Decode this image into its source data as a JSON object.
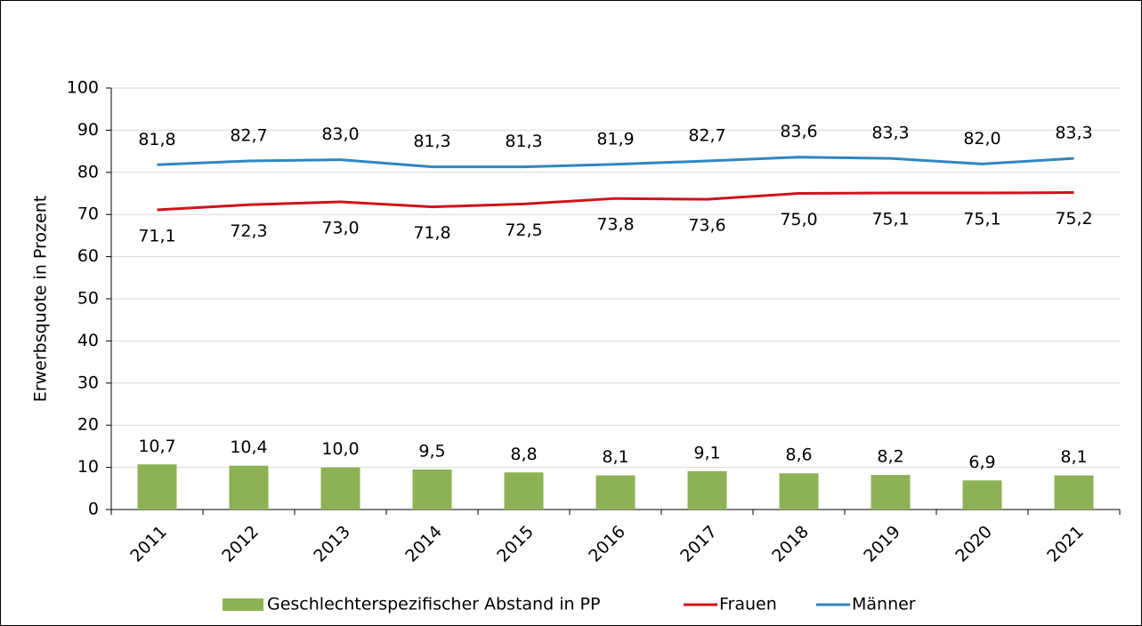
{
  "chart_data": {
    "type": "combo",
    "y_label": "Erwerbsquote in Prozent",
    "categories": [
      "2011",
      "2012",
      "2013",
      "2014",
      "2015",
      "2016",
      "2017",
      "2018",
      "2019",
      "2020",
      "2021"
    ],
    "series": [
      {
        "name": "Geschlechterspezifischer Abstand in PP",
        "type": "bar",
        "color": "#8db255",
        "values": [
          10.7,
          10.4,
          10.0,
          9.5,
          8.8,
          8.1,
          9.1,
          8.6,
          8.2,
          6.9,
          8.1
        ],
        "value_labels": [
          "10,7",
          "10,4",
          "10,0",
          "9,5",
          "8,8",
          "8,1",
          "9,1",
          "8,6",
          "8,2",
          "6,9",
          "8,1"
        ]
      },
      {
        "name": "Frauen",
        "type": "line",
        "color": "#d0121b",
        "values": [
          71.1,
          72.3,
          73.0,
          71.8,
          72.5,
          73.8,
          73.6,
          75.0,
          75.1,
          75.1,
          75.2
        ],
        "value_labels": [
          "71,1",
          "72,3",
          "73,0",
          "71,8",
          "72,5",
          "73,8",
          "73,6",
          "75,0",
          "75,1",
          "75,1",
          "75,2"
        ]
      },
      {
        "name": "Männer",
        "type": "line",
        "color": "#2e87c0",
        "values": [
          81.8,
          82.7,
          83.0,
          81.3,
          81.3,
          81.9,
          82.7,
          83.6,
          83.3,
          82.0,
          83.3
        ],
        "value_labels": [
          "81,8",
          "82,7",
          "83,0",
          "81,3",
          "81,3",
          "81,9",
          "82,7",
          "83,6",
          "83,3",
          "82,0",
          "83,3"
        ]
      }
    ],
    "ylim": [
      0,
      100
    ],
    "yticks": [
      0,
      10,
      20,
      30,
      40,
      50,
      60,
      70,
      80,
      90,
      100
    ],
    "grid": true,
    "legend": "bottom"
  }
}
